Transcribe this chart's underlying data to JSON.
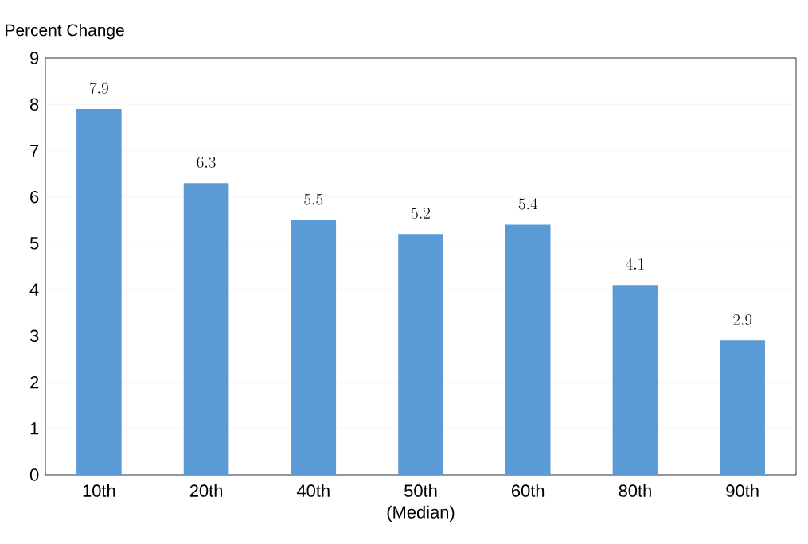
{
  "chart_data": {
    "type": "bar",
    "ylabel": "Percent Change",
    "categories": [
      "10th",
      "20th",
      "40th",
      "50th (Median)",
      "60th",
      "80th",
      "90th"
    ],
    "values": [
      7.9,
      6.3,
      5.5,
      5.2,
      5.4,
      4.1,
      2.9
    ],
    "color": "#5b9bd5",
    "ylim": [
      0,
      9
    ],
    "yticks": [
      0,
      1,
      2,
      3,
      4,
      5,
      6,
      7,
      8,
      9
    ],
    "grid": "y",
    "data_labels": true
  }
}
